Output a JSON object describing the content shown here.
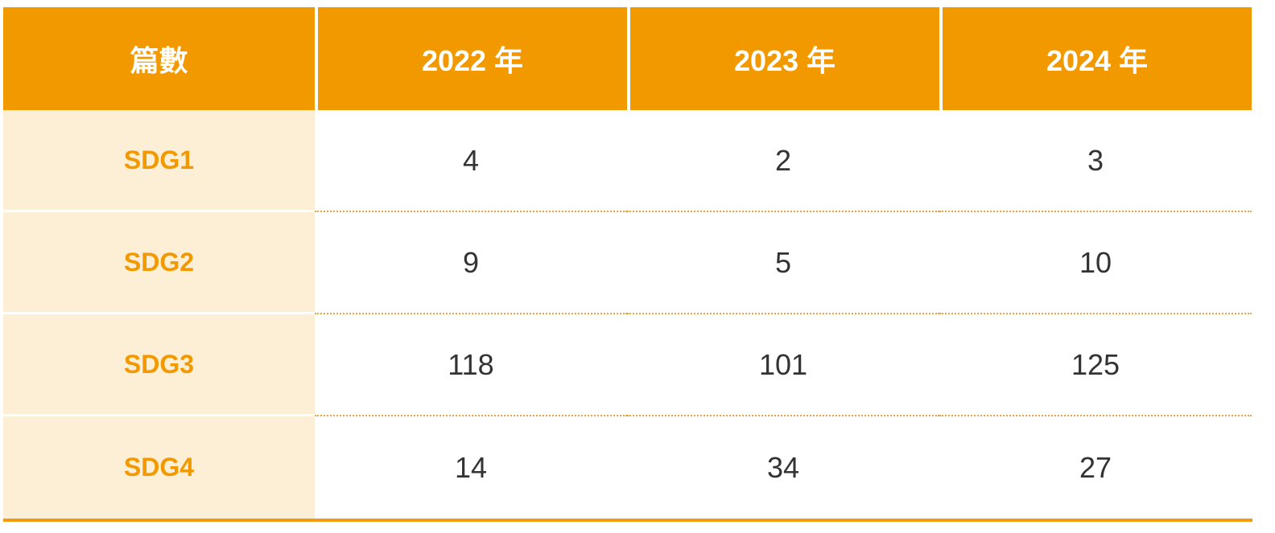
{
  "table": {
    "headers": [
      "篇數",
      "2022 年",
      "2023 年",
      "2024 年"
    ],
    "rows": [
      {
        "label": "SDG1",
        "values": [
          "4",
          "2",
          "3"
        ]
      },
      {
        "label": "SDG2",
        "values": [
          "9",
          "5",
          "10"
        ]
      },
      {
        "label": "SDG3",
        "values": [
          "118",
          "101",
          "125"
        ]
      },
      {
        "label": "SDG4",
        "values": [
          "14",
          "34",
          "27"
        ]
      }
    ]
  },
  "colors": {
    "header_bg": "#f29900",
    "label_bg": "#fdeed6",
    "label_text": "#f29900",
    "value_text": "#333333"
  }
}
